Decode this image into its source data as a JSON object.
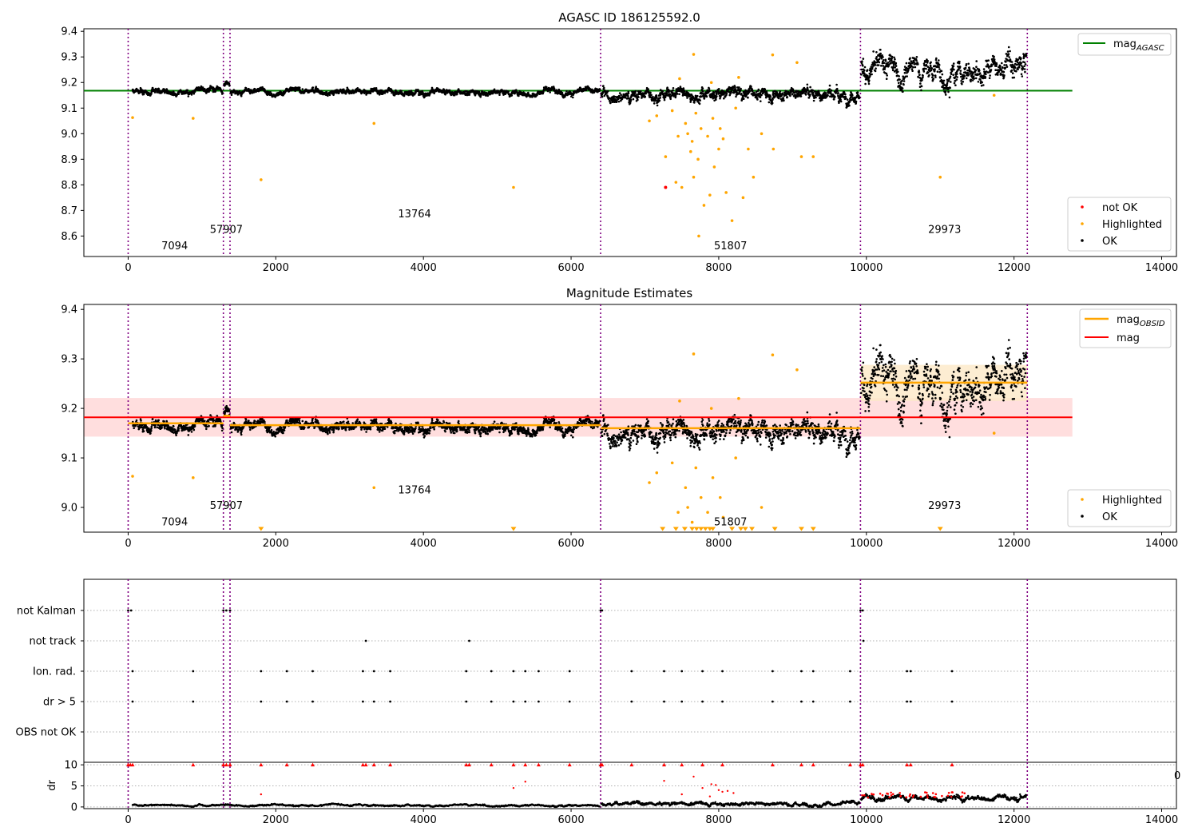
{
  "chart_data": [
    {
      "type": "scatter",
      "title": "AGASC ID 186125592.0",
      "xlim": [
        -600,
        14200
      ],
      "ylim": [
        8.52,
        9.41
      ],
      "xticks": [
        0,
        2000,
        4000,
        6000,
        8000,
        10000,
        12000,
        14000
      ],
      "yticks": [
        8.6,
        8.7,
        8.8,
        8.9,
        9.0,
        9.1,
        9.2,
        9.3,
        9.4
      ],
      "vlines": [
        0,
        1290,
        1380,
        6400,
        9920,
        12180
      ],
      "obsid_labels": [
        {
          "text": "7094",
          "x": 630,
          "y": 8.56
        },
        {
          "text": "57907",
          "x": 1330,
          "y": 8.625
        },
        {
          "text": "13764",
          "x": 3880,
          "y": 8.685
        },
        {
          "text": "51807",
          "x": 8160,
          "y": 8.56
        },
        {
          "text": "29973",
          "x": 11060,
          "y": 8.625
        }
      ],
      "segments": [
        {
          "x": [
            60,
            1280
          ],
          "level": 9.17,
          "noise": 0.012
        },
        {
          "x": [
            1300,
            1375
          ],
          "level": 9.19,
          "noise": 0.012
        },
        {
          "x": [
            1390,
            6390
          ],
          "level": 9.165,
          "noise": 0.012
        },
        {
          "x": [
            6410,
            9910
          ],
          "level": 9.16,
          "noise": 0.025
        },
        {
          "x": [
            9930,
            12170
          ],
          "level": 9.25,
          "noise": 0.05
        }
      ],
      "series": [
        {
          "name": "mag_AGASC",
          "type": "line",
          "color": "#008000",
          "x": [
            -600,
            12790
          ],
          "y": [
            9.168,
            9.168
          ]
        },
        {
          "name": "not OK",
          "color": "#ff0000",
          "points": [
            [
              7280,
              8.79
            ]
          ]
        },
        {
          "name": "Highlighted",
          "color": "#ffa500",
          "points": [
            [
              60,
              9.063
            ],
            [
              880,
              9.06
            ],
            [
              1800,
              8.82
            ],
            [
              3330,
              9.04
            ],
            [
              5220,
              8.79
            ],
            [
              9060,
              9.278
            ],
            [
              8730,
              9.308
            ],
            [
              7660,
              9.31
            ],
            [
              7470,
              9.215
            ],
            [
              7900,
              9.2
            ],
            [
              8270,
              9.22
            ],
            [
              7060,
              9.05
            ],
            [
              7160,
              9.07
            ],
            [
              7280,
              8.91
            ],
            [
              7420,
              8.81
            ],
            [
              7500,
              8.79
            ],
            [
              7620,
              8.93
            ],
            [
              7660,
              8.83
            ],
            [
              7730,
              8.6
            ],
            [
              7800,
              8.72
            ],
            [
              7880,
              8.76
            ],
            [
              7940,
              8.87
            ],
            [
              8000,
              8.94
            ],
            [
              8100,
              8.77
            ],
            [
              8180,
              8.66
            ],
            [
              8330,
              8.75
            ],
            [
              8400,
              8.94
            ],
            [
              8470,
              8.83
            ],
            [
              8580,
              9.0
            ],
            [
              8740,
              8.94
            ],
            [
              9120,
              8.91
            ],
            [
              9280,
              8.91
            ],
            [
              11000,
              8.83
            ],
            [
              11730,
              9.15
            ],
            [
              7550,
              9.04
            ],
            [
              7580,
              9.0
            ],
            [
              7640,
              8.97
            ],
            [
              7690,
              9.08
            ],
            [
              7720,
              8.9
            ],
            [
              7760,
              9.02
            ],
            [
              7850,
              8.99
            ],
            [
              7920,
              9.06
            ],
            [
              8020,
              9.02
            ],
            [
              8060,
              8.98
            ],
            [
              8230,
              9.1
            ],
            [
              7370,
              9.09
            ],
            [
              7450,
              8.99
            ]
          ]
        },
        {
          "name": "OK",
          "color": "#000000"
        }
      ],
      "legend": "bottom-right"
    },
    {
      "type": "scatter",
      "title": "Magnitude Estimates",
      "xlim": [
        -600,
        14200
      ],
      "ylim": [
        8.95,
        9.41
      ],
      "xticks": [
        0,
        2000,
        4000,
        6000,
        8000,
        10000,
        12000,
        14000
      ],
      "yticks": [
        9.0,
        9.1,
        9.2,
        9.3,
        9.4
      ],
      "vlines": [
        0,
        1290,
        1380,
        6400,
        9920,
        12180
      ],
      "obsid_labels": [
        {
          "text": "7094",
          "x": 630,
          "y": 8.97
        },
        {
          "text": "57907",
          "x": 1330,
          "y": 9.003
        },
        {
          "text": "13764",
          "x": 3880,
          "y": 9.035
        },
        {
          "text": "51807",
          "x": 8160,
          "y": 8.97
        },
        {
          "text": "29973",
          "x": 11060,
          "y": 9.003
        }
      ],
      "mag_band": {
        "x": [
          -600,
          12790
        ],
        "y": [
          9.143,
          9.221
        ]
      },
      "obsid_band": {
        "x": [
          9920,
          12180
        ],
        "y": [
          9.215,
          9.288
        ]
      },
      "series": [
        {
          "name": "mag_OBSID",
          "type": "step",
          "color": "#ffa500",
          "steps": [
            [
              0,
              1290,
              9.17
            ],
            [
              1290,
              1380,
              9.185
            ],
            [
              1380,
              6400,
              9.166
            ],
            [
              6400,
              9920,
              9.16
            ],
            [
              9920,
              12180,
              9.252
            ]
          ]
        },
        {
          "name": "mag",
          "type": "line",
          "color": "#ff0000",
          "x": [
            -600,
            12790
          ],
          "y": [
            9.182,
            9.182
          ]
        },
        {
          "name": "Highlighted",
          "color": "#ffa500"
        },
        {
          "name": "OK",
          "color": "#000000"
        }
      ],
      "offscale_markers_x": [
        1800,
        5220,
        7240,
        7420,
        7540,
        7640,
        7700,
        7760,
        7820,
        7880,
        7920,
        8180,
        8300,
        8360,
        8450,
        8760,
        9120,
        9280,
        11000
      ],
      "legend_top": "top-right",
      "legend_bottom": "bottom-right"
    },
    {
      "type": "scatter",
      "xlim": [
        -600,
        14200
      ],
      "rows": [
        "not Kalman",
        "not track",
        "Ion. rad.",
        "dr > 5",
        "OBS not OK"
      ],
      "vlines": [
        0,
        1290,
        1380,
        6400,
        9920,
        12180
      ],
      "flag_points": {
        "not Kalman": [
          0,
          40,
          1290,
          1330,
          1380,
          6400,
          6420,
          9920,
          9950
        ],
        "not track": [
          3220,
          4620,
          9960
        ],
        "Ion. rad.": [
          60,
          880,
          1800,
          2150,
          2500,
          3180,
          3330,
          3550,
          4580,
          4920,
          5220,
          5380,
          5560,
          5980,
          6820,
          7260,
          7500,
          7780,
          8050,
          8730,
          9120,
          9280,
          9780,
          10550,
          10600,
          11160
        ],
        "dr > 5": [
          60,
          880,
          1800,
          2150,
          2500,
          3180,
          3330,
          3550,
          4580,
          4920,
          5220,
          5380,
          5560,
          5980,
          6820,
          7260,
          7500,
          7780,
          8050,
          8730,
          9120,
          9280,
          9780,
          10550,
          10600,
          11160
        ],
        "OBS not OK": []
      }
    },
    {
      "type": "scatter",
      "ylabel": "dr",
      "xlim": [
        -600,
        14200
      ],
      "ylim": [
        -0.4,
        10.6
      ],
      "xticks": [
        0,
        2000,
        4000,
        6000,
        8000,
        10000,
        12000,
        14000
      ],
      "yticks": [
        0,
        5,
        10
      ],
      "stray_tick_text": "0",
      "vlines": [
        0,
        1290,
        1380,
        6400,
        9920,
        12180
      ],
      "capped_at_10_x": [
        0,
        30,
        60,
        880,
        1290,
        1330,
        1380,
        1800,
        2150,
        2500,
        3180,
        3220,
        3330,
        3550,
        4580,
        4620,
        4920,
        5220,
        5380,
        5560,
        5980,
        6400,
        6420,
        6820,
        7260,
        7500,
        7780,
        8050,
        8730,
        9120,
        9280,
        9780,
        9920,
        9950,
        10550,
        10600,
        11160
      ],
      "red_points": [
        [
          1800,
          3.0
        ],
        [
          5220,
          4.5
        ],
        [
          5380,
          6.0
        ],
        [
          7260,
          6.2
        ],
        [
          7500,
          3.0
        ],
        [
          7660,
          7.2
        ],
        [
          7780,
          4.5
        ],
        [
          7900,
          5.4
        ],
        [
          7960,
          5.2
        ],
        [
          8050,
          3.6
        ],
        [
          8120,
          3.8
        ],
        [
          8200,
          3.3
        ],
        [
          7880,
          2.5
        ],
        [
          8000,
          4.0
        ]
      ],
      "segments": [
        {
          "x": [
            60,
            6390
          ],
          "level": 0.3,
          "noise": 0.25
        },
        {
          "x": [
            6410,
            9910
          ],
          "level": 0.6,
          "noise": 0.6
        },
        {
          "x": [
            9930,
            12170
          ],
          "level": 1.8,
          "noise": 0.9
        }
      ]
    }
  ],
  "text": {
    "title1": "AGASC ID 186125592.0",
    "title2": "Magnitude Estimates",
    "legend1": {
      "mag_main": "mag",
      "mag_sub": "AGASC"
    },
    "legend2": {
      "not_ok": "not OK",
      "highlighted": "Highlighted",
      "ok": "OK"
    },
    "legend3": {
      "mag_main": "mag",
      "mag_sub": "OBSID",
      "mag": "mag"
    },
    "legend4": {
      "highlighted": "Highlighted",
      "ok": "OK"
    },
    "dr_label": "dr",
    "stray_zero": "0",
    "flag_rows": [
      "not Kalman",
      "not track",
      "Ion. rad.",
      "dr > 5",
      "OBS not OK"
    ]
  },
  "colors": {
    "ok": "#000000",
    "highlighted": "#ffa500",
    "not_ok": "#ff0000",
    "agasc_line": "#008000",
    "mag_line": "#ff0000",
    "mag_band": "#ffcccc",
    "obsid_line": "#ffa500",
    "obsid_band": "#fde9c7",
    "vline": "#800080",
    "grid": "#b0b0b0"
  }
}
